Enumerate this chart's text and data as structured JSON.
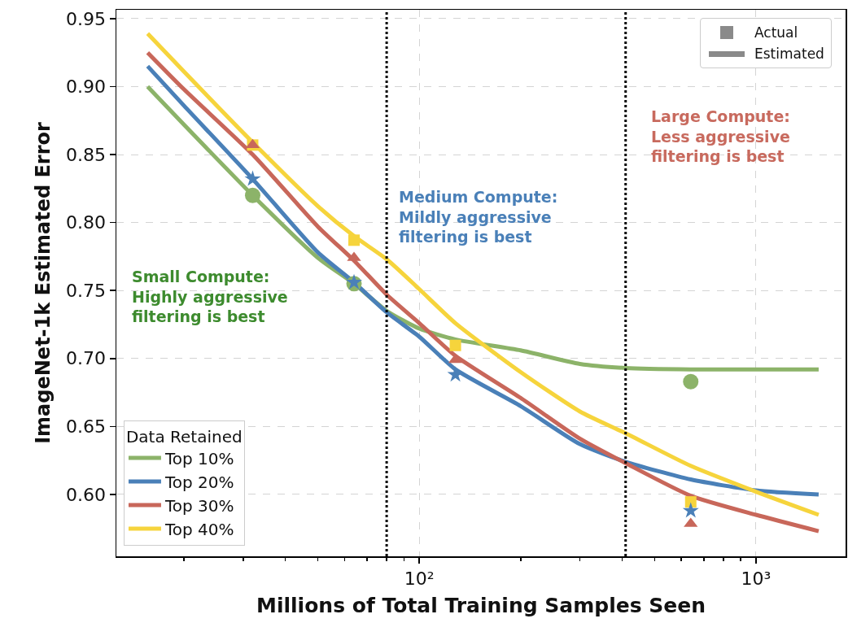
{
  "chart_data": {
    "type": "line",
    "xlabel": "Millions of Total Training Samples Seen",
    "ylabel": "ImageNet-1k Estimated Error",
    "legend_title": "Data Retained",
    "log": "x",
    "grid": true,
    "legend": "bottom left",
    "xlim": [
      12.6,
      1845
    ],
    "ylim": [
      0.5545,
      0.9565
    ],
    "xticks": [
      {
        "value": 20,
        "label": null
      },
      {
        "value": 30,
        "label": null
      },
      {
        "value": 40,
        "label": null
      },
      {
        "value": 50,
        "label": null
      },
      {
        "value": 60,
        "label": null
      },
      {
        "value": 70,
        "label": null
      },
      {
        "value": 80,
        "label": null
      },
      {
        "value": 90,
        "label": null
      },
      {
        "value": 100,
        "label": "10²"
      },
      {
        "value": 200,
        "label": null
      },
      {
        "value": 300,
        "label": null
      },
      {
        "value": 400,
        "label": null
      },
      {
        "value": 500,
        "label": null
      },
      {
        "value": 600,
        "label": null
      },
      {
        "value": 700,
        "label": null
      },
      {
        "value": 800,
        "label": null
      },
      {
        "value": 900,
        "label": null
      },
      {
        "value": 1000,
        "label": "10³"
      }
    ],
    "yticks": [
      {
        "value": 0.6,
        "label": "0.60"
      },
      {
        "value": 0.65,
        "label": "0.65"
      },
      {
        "value": 0.7,
        "label": "0.70"
      },
      {
        "value": 0.75,
        "label": "0.75"
      },
      {
        "value": 0.8,
        "label": "0.80"
      },
      {
        "value": 0.85,
        "label": "0.85"
      },
      {
        "value": 0.9,
        "label": "0.90"
      },
      {
        "value": 0.95,
        "label": "0.95"
      }
    ],
    "ref_lines": [
      {
        "axis": "x",
        "value": 80,
        "color": "#000000",
        "line_style": "dotted"
      },
      {
        "axis": "x",
        "value": 410,
        "color": "#000000",
        "line_style": "dotted"
      }
    ],
    "annotations": [
      "Small Compute:\nHighly aggressive\nfiltering is best",
      "Medium Compute:\nMildly aggressive\nfiltering is best",
      "Large Compute:\nLess aggressive\nfiltering is best",
      "Actual",
      "Estimated"
    ],
    "series": [
      {
        "name": "Top 10%",
        "type": "line",
        "color": "#8cb369",
        "x": [
          15.6,
          20,
          32,
          50,
          64,
          80,
          100,
          128,
          200,
          300,
          410,
          640,
          1000,
          1535
        ],
        "values": [
          0.9,
          0.872,
          0.82,
          0.774,
          0.755,
          0.735,
          0.722,
          0.714,
          0.706,
          0.696,
          0.693,
          0.692,
          0.692,
          0.692
        ]
      },
      {
        "name": "Top 20%",
        "type": "line",
        "color": "#4a80b8",
        "x": [
          15.6,
          20,
          32,
          50,
          64,
          80,
          100,
          128,
          200,
          300,
          410,
          640,
          1000,
          1535
        ],
        "values": [
          0.915,
          0.886,
          0.832,
          0.778,
          0.756,
          0.734,
          0.716,
          0.692,
          0.665,
          0.637,
          0.624,
          0.611,
          0.603,
          0.6
        ]
      },
      {
        "name": "Top 30%",
        "type": "line",
        "color": "#c8675a",
        "x": [
          15.6,
          20,
          32,
          50,
          64,
          80,
          100,
          128,
          200,
          300,
          410,
          640,
          1000,
          1535
        ],
        "values": [
          0.925,
          0.898,
          0.85,
          0.797,
          0.772,
          0.747,
          0.726,
          0.702,
          0.671,
          0.641,
          0.623,
          0.599,
          0.585,
          0.573
        ]
      },
      {
        "name": "Top 40%",
        "type": "line",
        "color": "#f6d43c",
        "x": [
          15.6,
          20,
          32,
          50,
          64,
          80,
          100,
          128,
          200,
          300,
          410,
          640,
          1000,
          1535
        ],
        "values": [
          0.939,
          0.911,
          0.859,
          0.812,
          0.79,
          0.773,
          0.751,
          0.726,
          0.69,
          0.661,
          0.645,
          0.621,
          0.602,
          0.585
        ]
      },
      {
        "type": "scatter",
        "color": "#f6d43c",
        "marker": "square",
        "x": [
          32,
          64,
          128,
          640
        ],
        "values": [
          0.857,
          0.787,
          0.7096,
          0.5945
        ]
      },
      {
        "type": "scatter",
        "color": "#8cb369",
        "marker": "circle",
        "x": [
          32,
          64,
          640
        ],
        "values": [
          0.82,
          0.755,
          0.683
        ]
      },
      {
        "type": "scatter",
        "color": "#4a80b8",
        "marker": "star",
        "x": [
          32,
          64,
          128,
          640
        ],
        "values": [
          0.832,
          0.756,
          0.688,
          0.588
        ]
      },
      {
        "type": "scatter",
        "color": "#c8675a",
        "marker": "triangle",
        "x": [
          32,
          64,
          128,
          640
        ],
        "values": [
          0.857,
          0.774,
          0.699,
          0.5785
        ]
      }
    ]
  }
}
